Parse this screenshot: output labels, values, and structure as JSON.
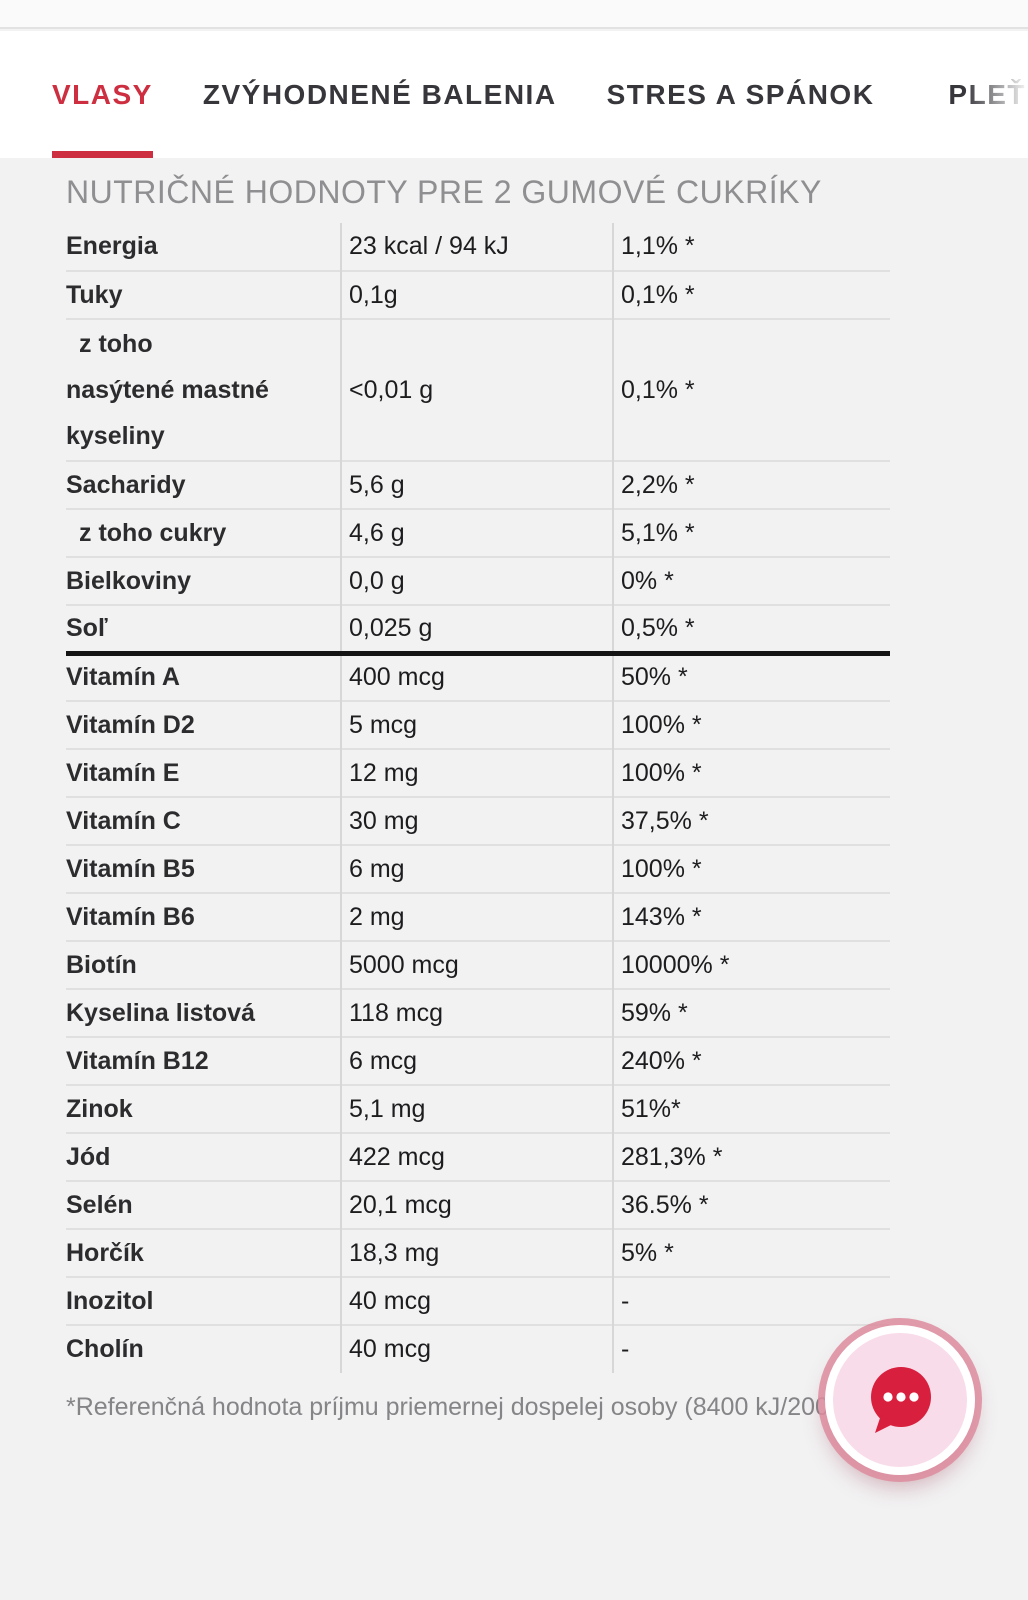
{
  "nav": {
    "tabs": [
      {
        "label": "VLASY",
        "active": true
      },
      {
        "label": "ZVÝHODNENÉ BALENIA",
        "active": false
      },
      {
        "label": "STRES A SPÁNOK",
        "active": false
      },
      {
        "label": "PLEŤ",
        "active": false,
        "clipped": true
      }
    ]
  },
  "table": {
    "title": "NUTRIČNÉ HODNOTY PRE 2 GUMOVÉ CUKRÍKY",
    "rows": [
      {
        "name": "Energia",
        "value": "23 kcal / 94 kJ",
        "pct": "1,1% *"
      },
      {
        "name": "Tuky",
        "value": "0,1g",
        "pct": "0,1% *"
      },
      {
        "name_lines": [
          "z toho",
          "nasýtené mastné",
          "kyseliny"
        ],
        "indent_first": true,
        "multiline": true,
        "value": "<0,01 g",
        "pct": "0,1% *"
      },
      {
        "name": "Sacharidy",
        "value": "5,6 g",
        "pct": "2,2% *"
      },
      {
        "name": "z toho cukry",
        "indent": true,
        "value": "4,6 g",
        "pct": "5,1% *"
      },
      {
        "name": "Bielkoviny",
        "value": "0,0 g",
        "pct": "0% *"
      },
      {
        "name": "Soľ",
        "value": "0,025 g",
        "pct": "0,5% *"
      },
      {
        "name": "Vitamín A",
        "value": "400 mcg",
        "pct": "50% *",
        "thick_top": true
      },
      {
        "name": "Vitamín D2",
        "value": "5 mcg",
        "pct": "100% *"
      },
      {
        "name": "Vitamín E",
        "value": "12 mg",
        "pct": "100% *"
      },
      {
        "name": "Vitamín C",
        "value": "30 mg",
        "pct": "37,5% *"
      },
      {
        "name": "Vitamín B5",
        "value": "6 mg",
        "pct": "100% *"
      },
      {
        "name": "Vitamín B6",
        "value": "2 mg",
        "pct": "143% *"
      },
      {
        "name": "Biotín",
        "value": "5000 mcg",
        "pct": "10000% *"
      },
      {
        "name": "Kyselina listová",
        "value": "118 mcg",
        "pct": "59% *"
      },
      {
        "name": "Vitamín B12",
        "value": "6 mcg",
        "pct": "240% *"
      },
      {
        "name": "Zinok",
        "value": "5,1 mg",
        "pct": "51%*"
      },
      {
        "name": "Jód",
        "value": "422 mcg",
        "pct": "281,3% *"
      },
      {
        "name": "Selén",
        "value": "20,1 mcg",
        "pct": "36.5% *"
      },
      {
        "name": "Horčík",
        "value": "18,3 mg",
        "pct": "5% *"
      },
      {
        "name": "Inozitol",
        "value": "40 mcg",
        "pct": "-"
      },
      {
        "name": "Cholín",
        "value": "40 mcg",
        "pct": "-"
      }
    ],
    "footnote": "*Referenčná hodnota príjmu priemernej dospelej osoby (8400 kJ/200"
  },
  "chat": {
    "icon": "chat-bubble-icon"
  },
  "colors": {
    "accent_red": "#cd2f40",
    "chat_icon_red": "#d81f3d",
    "chat_bg_pink": "#f9dcea",
    "chat_ring_pink": "#dd8c9d",
    "content_bg": "#f2f2f3",
    "divider_gray": "#e0e0e1",
    "thick_divider": "#141414",
    "title_gray": "#8f8f91",
    "footnote_gray": "#858588",
    "tab_inactive": "#36363b"
  }
}
